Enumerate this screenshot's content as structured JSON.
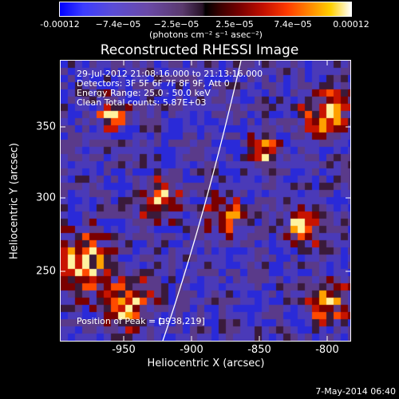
{
  "colorbar": {
    "ticks": [
      "-0.00012",
      "−7.4e−05",
      "−2.5e−05",
      "2.5e−05",
      "7.4e−05",
      "0.00012"
    ],
    "units": "(photons cm⁻² s⁻¹ asec⁻²)"
  },
  "plot": {
    "title": "Reconstructed RHESSI Image",
    "annotations": {
      "time": "29-Jul-2012 21:08:16.000 to 21:13:16.000",
      "detectors": "Detectors: 3F 5F 6F 7F 8F 9F, Att 0",
      "energy": "Energy Range: 25.0 - 50.0 keV",
      "clean": "Clean    Total counts: 5.87E+03",
      "peak": "Position of Peak = [-938,219]"
    },
    "ylabel": "Heliocentric Y (arcsec)",
    "xlabel": "Heliocentric X (arcsec)",
    "yticks": [
      "350",
      "300",
      "250"
    ],
    "xticks": [
      "-950",
      "-900",
      "-850",
      "-800"
    ]
  },
  "footer": "7-May-2014 06:40"
}
